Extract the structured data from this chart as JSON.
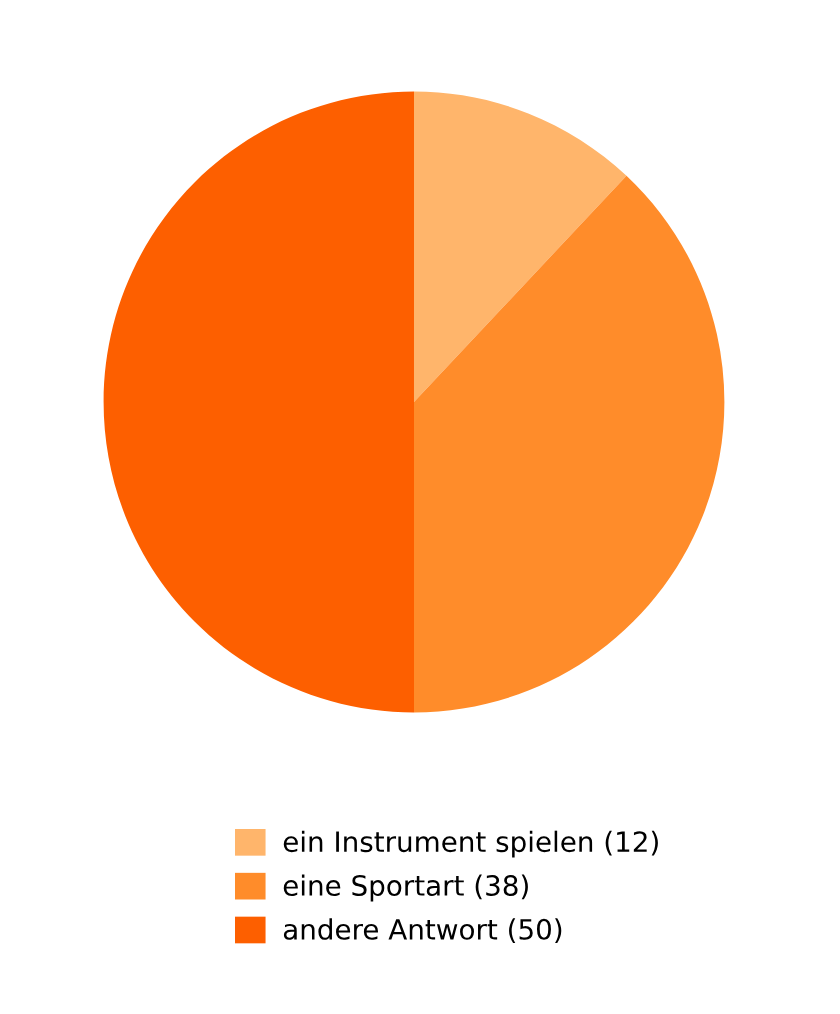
{
  "chart_data": {
    "type": "pie",
    "categories": [
      "ein Instrument spielen (12)",
      "eine Sportart (38)",
      "andere Antwort (50)"
    ],
    "values": [
      12,
      38,
      50
    ],
    "colors": [
      "#ffb56b",
      "#ff8c2a",
      "#fd5f00"
    ],
    "legend": "bottom"
  }
}
